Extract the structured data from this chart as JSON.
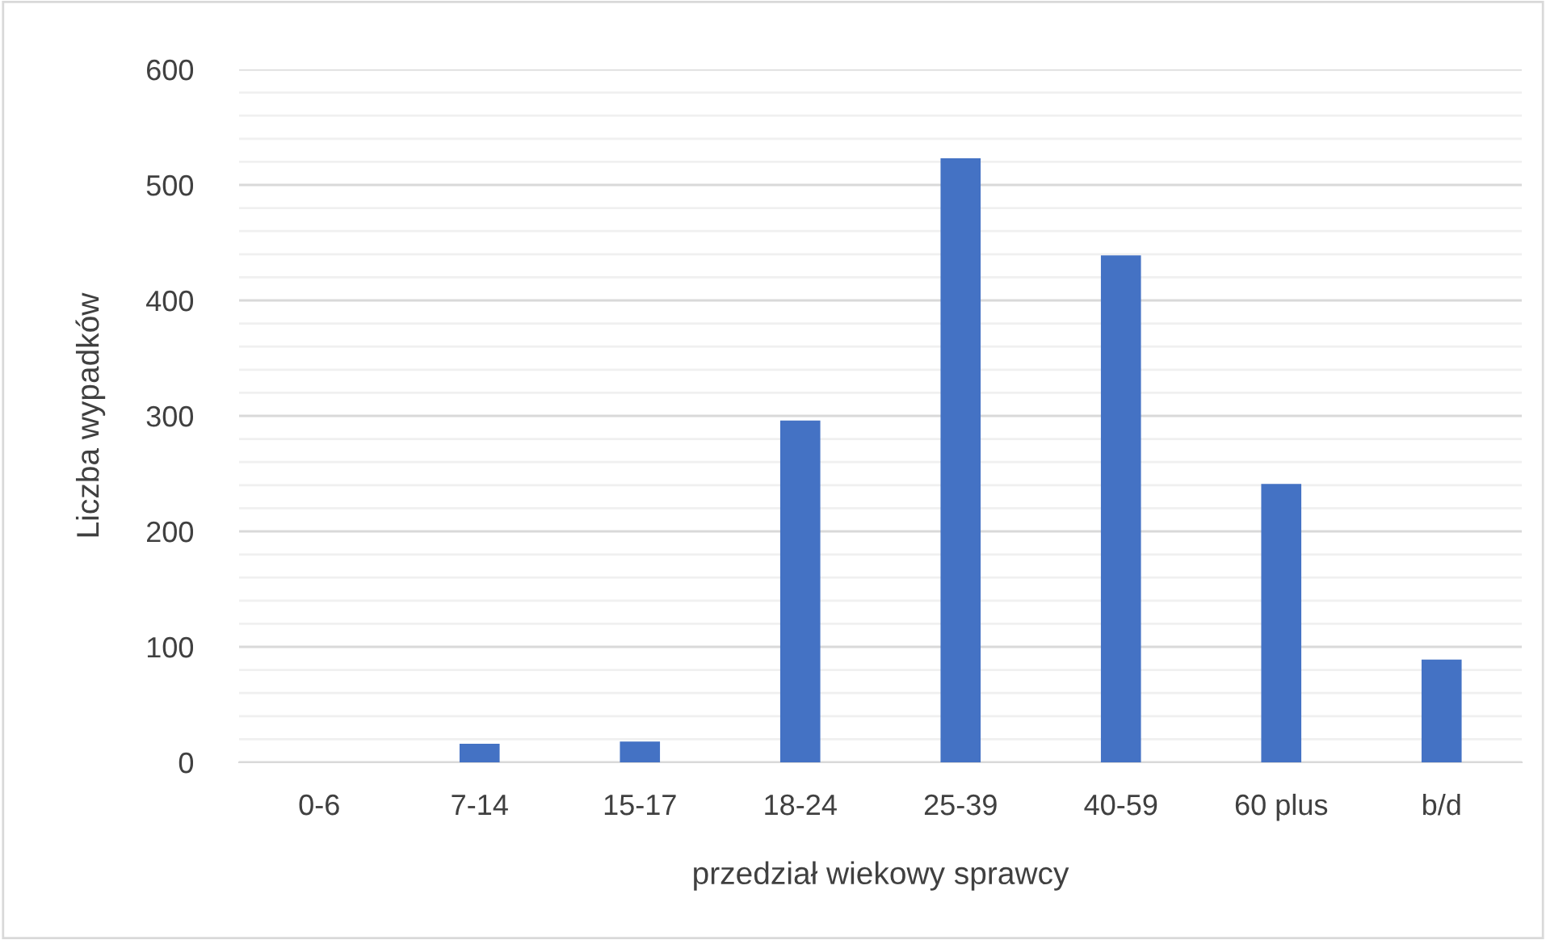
{
  "chart_data": {
    "type": "bar",
    "xlabel": "przedział wiekowy sprawcy",
    "ylabel": "Liczba wypadków",
    "categories": [
      "0-6",
      "7-14",
      "15-17",
      "18-24",
      "25-39",
      "40-59",
      "60 plus",
      "b/d"
    ],
    "values": [
      0,
      16,
      18,
      296,
      523,
      439,
      241,
      89
    ],
    "color": "#4472c4",
    "ylim": [
      0,
      600
    ],
    "yticks": [
      0,
      100,
      200,
      300,
      400,
      500,
      600
    ],
    "grid": true
  }
}
